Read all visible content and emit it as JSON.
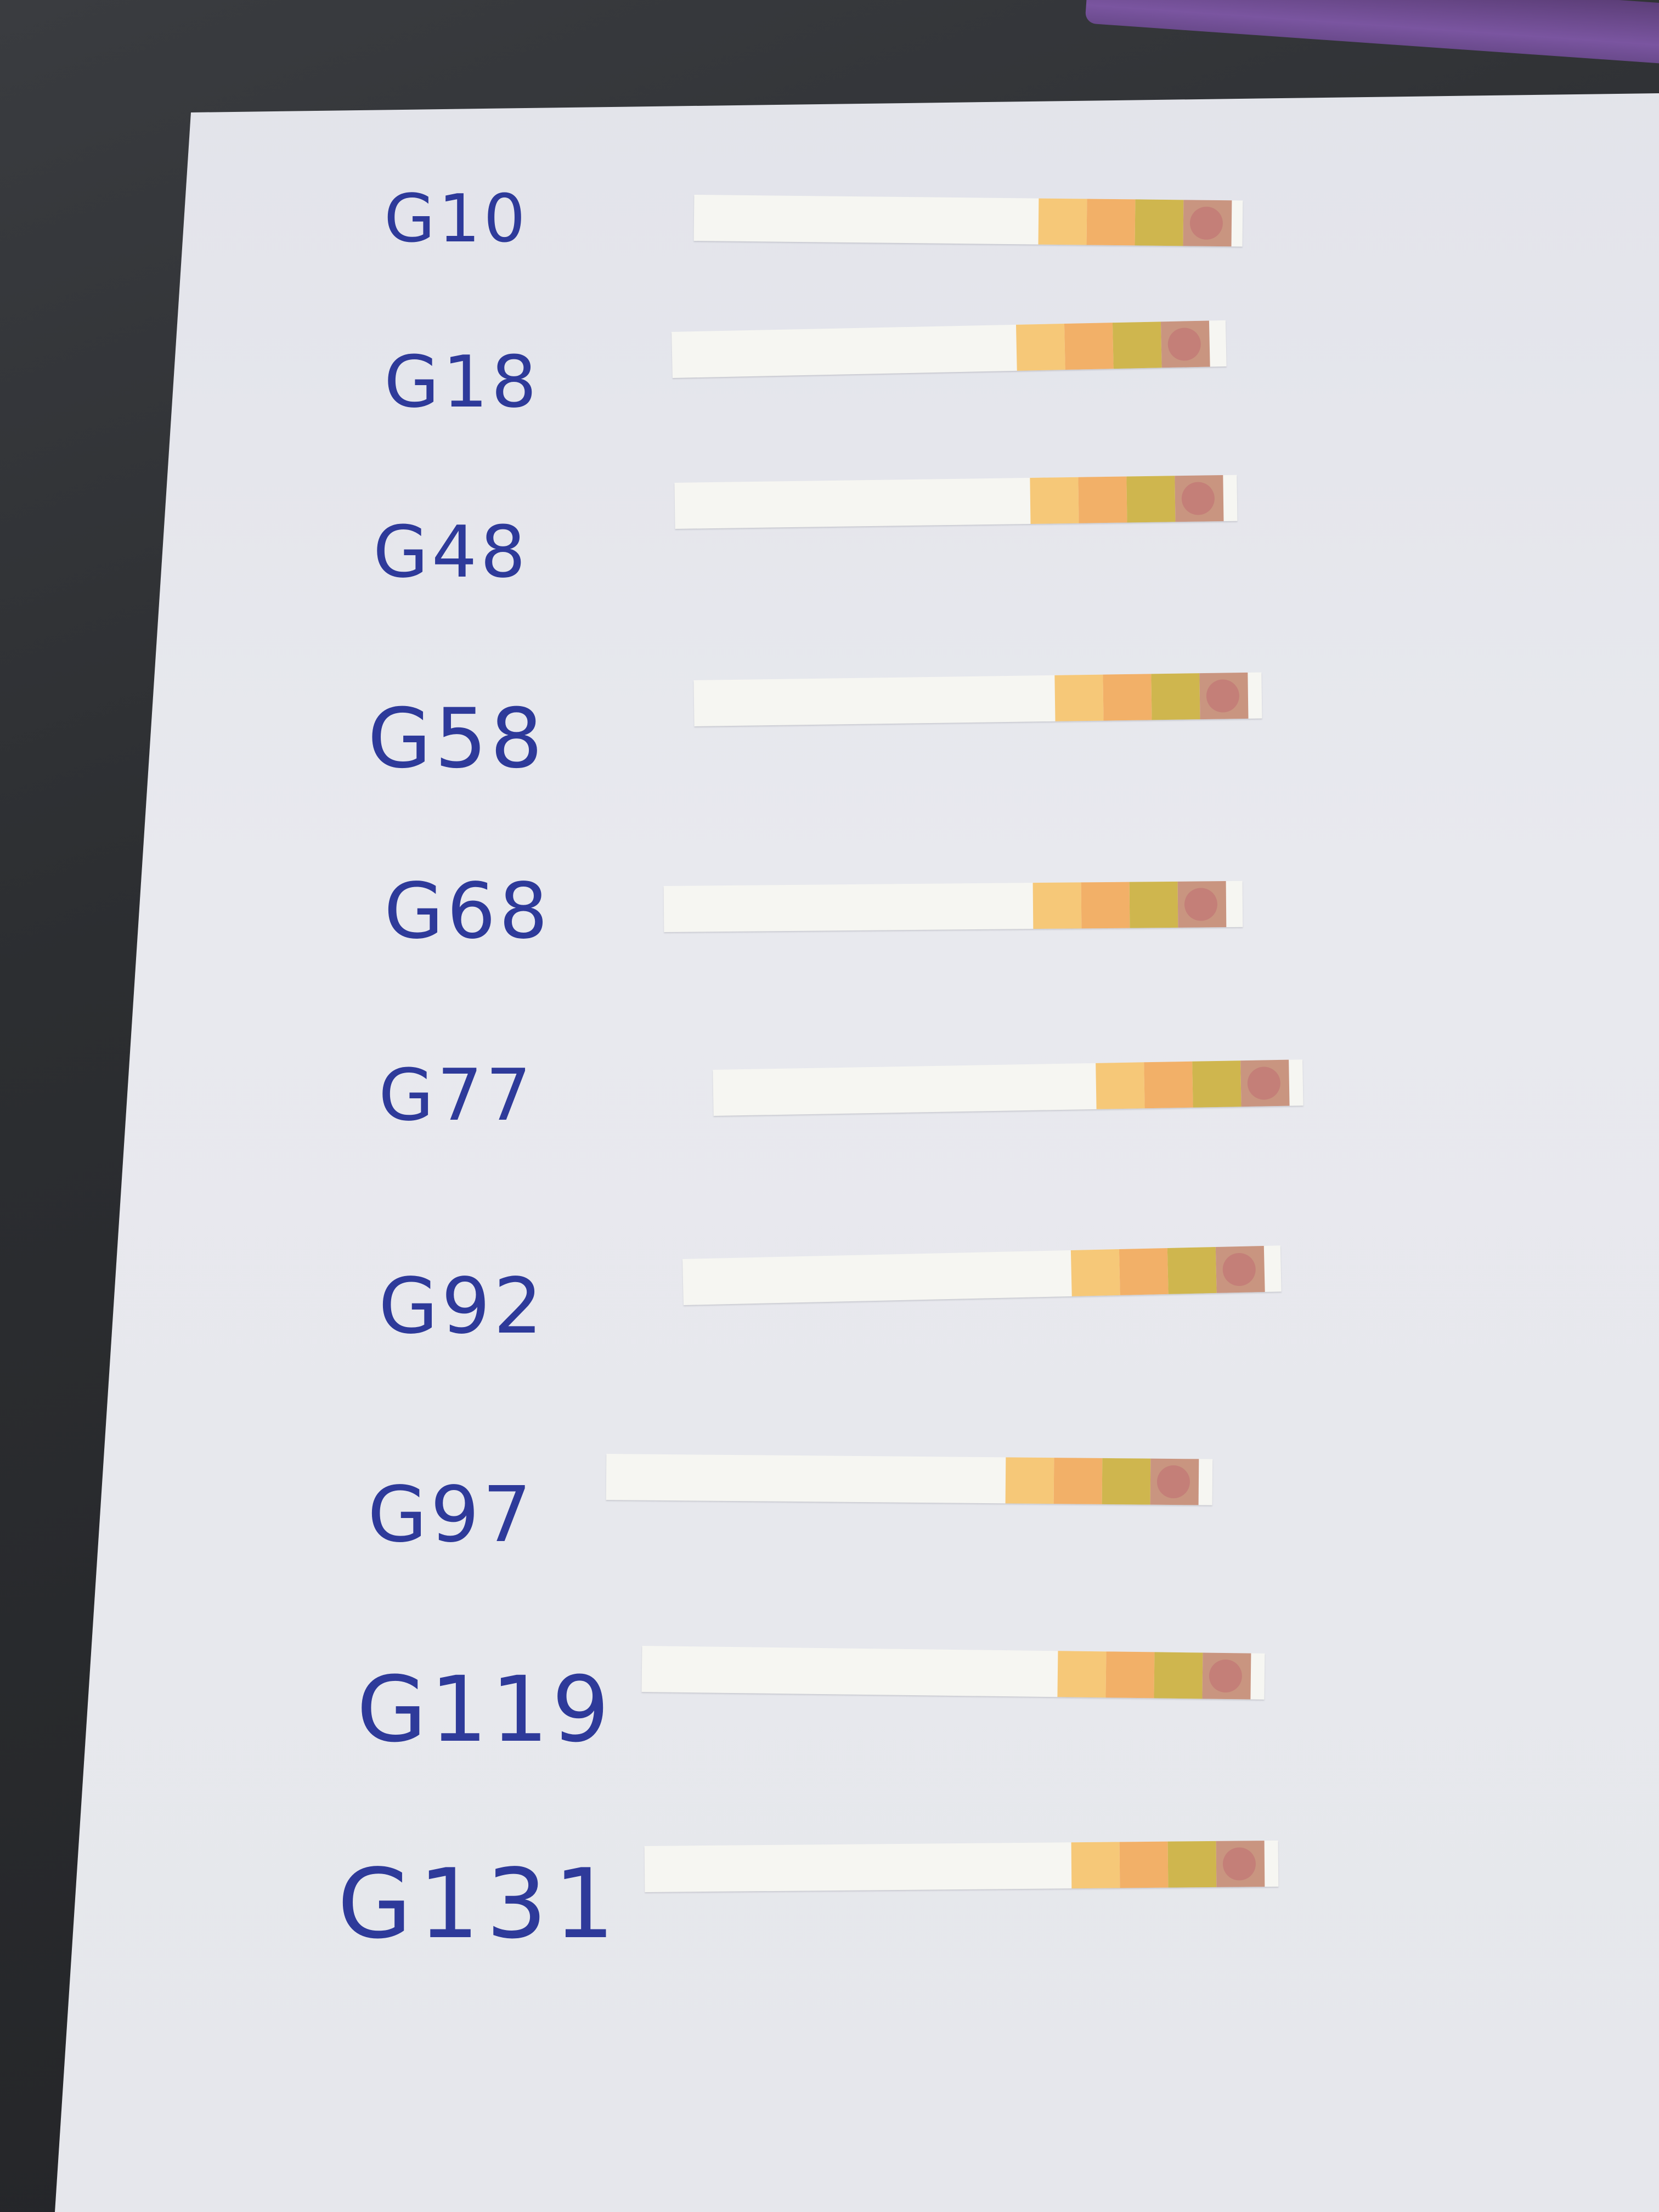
{
  "labels": [
    "G10",
    "G18",
    "G48",
    "G58",
    "G68",
    "G77",
    "G92",
    "G97",
    "G119",
    "G131"
  ],
  "colors": {
    "ink": "#2e3a9a",
    "strip": "#f6f6f2",
    "pad_pale_orange": "#f6c878",
    "pad_orange": "#f2b068",
    "pad_olive": "#cfb64e",
    "pad_rose": "#c99580",
    "pad_spot": "#c47f78"
  }
}
